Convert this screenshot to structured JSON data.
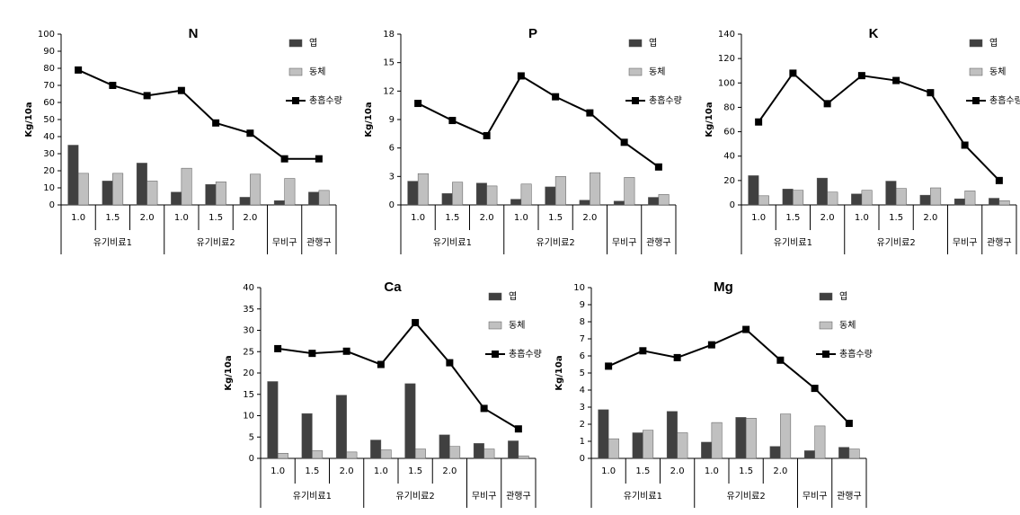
{
  "chart_data": [
    {
      "type": "bar",
      "title": "N",
      "y_label": "Kg/10a",
      "ylim": [
        0,
        100
      ],
      "yticks": [
        0,
        10,
        20,
        30,
        40,
        50,
        60,
        70,
        80,
        90,
        100
      ],
      "groups": [
        {
          "name": "유기비료1",
          "categories": [
            "1.0",
            "1.5",
            "2.0"
          ]
        },
        {
          "name": "유기비료2",
          "categories": [
            "1.0",
            "1.5",
            "2.0"
          ]
        },
        {
          "name": "무비구",
          "categories": [
            null
          ]
        },
        {
          "name": "관행구",
          "categories": [
            null
          ]
        }
      ],
      "series": [
        {
          "name": "엽",
          "type": "bar",
          "color": "#404040",
          "values": [
            35,
            14,
            24.5,
            7.5,
            12,
            4.5,
            2.5,
            7.5
          ]
        },
        {
          "name": "동체",
          "type": "bar",
          "color": "#c0c0c0",
          "values": [
            18.5,
            18.5,
            14,
            21.5,
            13.5,
            18,
            15.5,
            8.5
          ]
        },
        {
          "name": "총흡수량",
          "type": "line",
          "color": "#000000",
          "values": [
            79,
            70,
            64,
            67,
            48,
            42,
            27,
            27
          ]
        }
      ]
    },
    {
      "type": "bar",
      "title": "P",
      "y_label": "Kg/10a",
      "ylim": [
        0,
        18
      ],
      "yticks": [
        0,
        3,
        6,
        9,
        12,
        15,
        18
      ],
      "groups": [
        {
          "name": "유기비료1",
          "categories": [
            "1.0",
            "1.5",
            "2.0"
          ]
        },
        {
          "name": "유기비료2",
          "categories": [
            "1.0",
            "1.5",
            "2.0"
          ]
        },
        {
          "name": "무비구",
          "categories": [
            null
          ]
        },
        {
          "name": "관행구",
          "categories": [
            null
          ]
        }
      ],
      "series": [
        {
          "name": "엽",
          "type": "bar",
          "color": "#404040",
          "values": [
            2.5,
            1.2,
            2.3,
            0.6,
            1.9,
            0.5,
            0.4,
            0.8
          ]
        },
        {
          "name": "동체",
          "type": "bar",
          "color": "#c0c0c0",
          "values": [
            3.3,
            2.4,
            2.0,
            2.2,
            3.0,
            3.4,
            2.9,
            1.1
          ]
        },
        {
          "name": "총흡수량",
          "type": "line",
          "color": "#000000",
          "values": [
            10.7,
            8.9,
            7.3,
            13.6,
            11.4,
            9.7,
            6.6,
            4.0
          ]
        }
      ]
    },
    {
      "type": "bar",
      "title": "K",
      "y_label": "Kg/10a",
      "ylim": [
        0,
        140
      ],
      "yticks": [
        0,
        20,
        40,
        60,
        80,
        100,
        120,
        140
      ],
      "groups": [
        {
          "name": "유기비료1",
          "categories": [
            "1.0",
            "1.5",
            "2.0"
          ]
        },
        {
          "name": "유기비료2",
          "categories": [
            "1.0",
            "1.5",
            "2.0"
          ]
        },
        {
          "name": "무비구",
          "categories": [
            null
          ]
        },
        {
          "name": "관행구",
          "categories": [
            null
          ]
        }
      ],
      "series": [
        {
          "name": "엽",
          "type": "bar",
          "color": "#404040",
          "values": [
            24,
            13,
            22,
            9,
            19.5,
            8,
            5,
            5.5
          ]
        },
        {
          "name": "동체",
          "type": "bar",
          "color": "#c0c0c0",
          "values": [
            7.5,
            12,
            10.5,
            12,
            13.5,
            14,
            11.5,
            3.5
          ]
        },
        {
          "name": "총흡수량",
          "type": "line",
          "color": "#000000",
          "values": [
            68,
            108,
            83,
            106,
            102,
            92,
            49,
            20
          ]
        }
      ]
    },
    {
      "type": "bar",
      "title": "Ca",
      "y_label": "Kg/10a",
      "ylim": [
        0,
        40
      ],
      "yticks": [
        0,
        5,
        10,
        15,
        20,
        25,
        30,
        35,
        40
      ],
      "groups": [
        {
          "name": "유기비료1",
          "categories": [
            "1.0",
            "1.5",
            "2.0"
          ]
        },
        {
          "name": "유기비료2",
          "categories": [
            "1.0",
            "1.5",
            "2.0"
          ]
        },
        {
          "name": "무비구",
          "categories": [
            null
          ]
        },
        {
          "name": "관행구",
          "categories": [
            null
          ]
        }
      ],
      "series": [
        {
          "name": "엽",
          "type": "bar",
          "color": "#404040",
          "values": [
            18,
            10.5,
            14.8,
            4.3,
            17.5,
            5.5,
            3.5,
            4.1
          ]
        },
        {
          "name": "동체",
          "type": "bar",
          "color": "#c0c0c0",
          "values": [
            1.2,
            1.8,
            1.5,
            2.0,
            2.2,
            2.8,
            2.2,
            0.6
          ]
        },
        {
          "name": "총흡수량",
          "type": "line",
          "color": "#000000",
          "values": [
            25.7,
            24.6,
            25.1,
            22.0,
            31.8,
            22.4,
            11.7,
            6.9
          ]
        }
      ]
    },
    {
      "type": "bar",
      "title": "Mg",
      "y_label": "Kg/10a",
      "ylim": [
        0,
        10
      ],
      "yticks": [
        0,
        1,
        2,
        3,
        4,
        5,
        6,
        7,
        8,
        9,
        10
      ],
      "groups": [
        {
          "name": "유기비료1",
          "categories": [
            "1.0",
            "1.5",
            "2.0"
          ]
        },
        {
          "name": "유기비료2",
          "categories": [
            "1.0",
            "1.5",
            "2.0"
          ]
        },
        {
          "name": "무비구",
          "categories": [
            null
          ]
        },
        {
          "name": "관행구",
          "categories": [
            null
          ]
        }
      ],
      "series": [
        {
          "name": "엽",
          "type": "bar",
          "color": "#404040",
          "values": [
            2.85,
            1.5,
            2.75,
            0.95,
            2.4,
            0.7,
            0.45,
            0.65
          ]
        },
        {
          "name": "동체",
          "type": "bar",
          "color": "#c0c0c0",
          "values": [
            1.15,
            1.65,
            1.5,
            2.1,
            2.35,
            2.6,
            1.9,
            0.55
          ]
        },
        {
          "name": "총흡수량",
          "type": "line",
          "color": "#000000",
          "values": [
            5.4,
            6.3,
            5.9,
            6.65,
            7.55,
            5.75,
            4.1,
            2.05
          ]
        }
      ]
    }
  ]
}
